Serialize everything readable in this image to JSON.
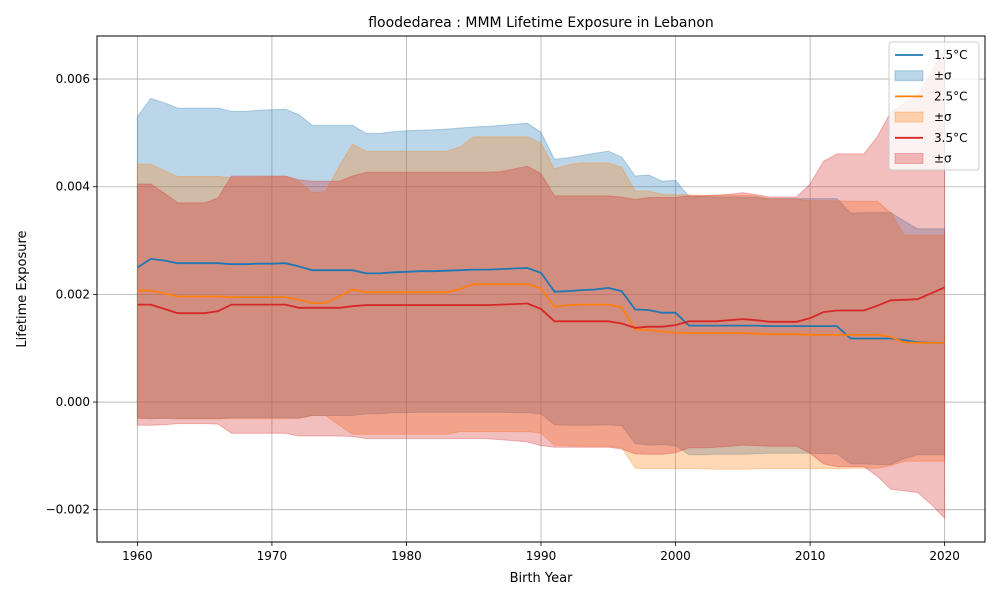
{
  "chart_data": {
    "type": "line",
    "title": "floodedarea : MMM Lifetime Exposure in Lebanon",
    "xlabel": "Birth Year",
    "ylabel": "Lifetime Exposure",
    "xlim": [
      1957,
      2023
    ],
    "ylim": [
      -0.0026,
      0.0068
    ],
    "xticks": [
      1960,
      1970,
      1980,
      1990,
      2000,
      2010,
      2020
    ],
    "yticks": [
      -0.002,
      0.0,
      0.002,
      0.004,
      0.006
    ],
    "xtick_labels": [
      "1960",
      "1970",
      "1980",
      "1990",
      "2000",
      "2010",
      "2020"
    ],
    "ytick_labels": [
      "−0.002",
      "0.000",
      "0.002",
      "0.004",
      "0.006"
    ],
    "grid": true,
    "legend_position": "top-right",
    "legend": [
      "1.5°C",
      "±σ",
      "2.5°C",
      "±σ",
      "3.5°C",
      "±σ"
    ],
    "x": [
      1960,
      1961,
      1962,
      1963,
      1964,
      1965,
      1966,
      1967,
      1968,
      1969,
      1970,
      1971,
      1972,
      1973,
      1974,
      1975,
      1976,
      1977,
      1978,
      1979,
      1980,
      1981,
      1982,
      1983,
      1984,
      1985,
      1986,
      1987,
      1988,
      1989,
      1990,
      1991,
      1992,
      1993,
      1994,
      1995,
      1996,
      1997,
      1998,
      1999,
      2000,
      2001,
      2002,
      2003,
      2004,
      2005,
      2006,
      2007,
      2008,
      2009,
      2010,
      2011,
      2012,
      2013,
      2014,
      2015,
      2016,
      2017,
      2018,
      2019,
      2020
    ],
    "series": [
      {
        "name": "1.5°C",
        "color": "#1f77b4",
        "values": [
          0.0025,
          0.00266,
          0.00263,
          0.00258,
          0.00258,
          0.00258,
          0.00258,
          0.00256,
          0.00256,
          0.00257,
          0.00257,
          0.00258,
          0.00252,
          0.00245,
          0.00245,
          0.00245,
          0.00245,
          0.00239,
          0.00239,
          0.00241,
          0.00242,
          0.00243,
          0.00243,
          0.00244,
          0.00245,
          0.00246,
          0.00246,
          0.00247,
          0.00248,
          0.00249,
          0.0024,
          0.00205,
          0.00206,
          0.00208,
          0.00209,
          0.00212,
          0.00206,
          0.00172,
          0.00171,
          0.00166,
          0.00166,
          0.00142,
          0.00142,
          0.00142,
          0.00142,
          0.00142,
          0.00142,
          0.00141,
          0.00141,
          0.00141,
          0.00141,
          0.00141,
          0.00141,
          0.00118,
          0.00118,
          0.00118,
          0.00118,
          0.00115,
          0.00111,
          0.0011,
          0.0011
        ],
        "upper": [
          0.0053,
          0.00564,
          0.00556,
          0.00546,
          0.00546,
          0.00546,
          0.00546,
          0.0054,
          0.0054,
          0.00542,
          0.00543,
          0.00544,
          0.00534,
          0.00514,
          0.00514,
          0.00514,
          0.00514,
          0.00499,
          0.00499,
          0.00502,
          0.00504,
          0.00505,
          0.00506,
          0.00507,
          0.00509,
          0.00511,
          0.00512,
          0.00514,
          0.00516,
          0.00518,
          0.00501,
          0.00451,
          0.00454,
          0.00458,
          0.00462,
          0.00466,
          0.00455,
          0.0042,
          0.00422,
          0.0041,
          0.00412,
          0.00382,
          0.00382,
          0.00381,
          0.00381,
          0.00381,
          0.0038,
          0.00378,
          0.00378,
          0.00378,
          0.00378,
          0.00378,
          0.00378,
          0.00351,
          0.00352,
          0.00352,
          0.00352,
          0.00336,
          0.00322,
          0.00322,
          0.00322
        ],
        "lower": [
          -0.0003,
          -0.00031,
          -0.0003,
          -0.00031,
          -0.00031,
          -0.00031,
          -0.00031,
          -0.00029,
          -0.00029,
          -0.00029,
          -0.00029,
          -0.00029,
          -0.0003,
          -0.00025,
          -0.00025,
          -0.00025,
          -0.00025,
          -0.00022,
          -0.00022,
          -0.0002,
          -0.0002,
          -0.00019,
          -0.00019,
          -0.00019,
          -0.00019,
          -0.00019,
          -0.00019,
          -0.00019,
          -0.0002,
          -0.0002,
          -0.00022,
          -0.00042,
          -0.00043,
          -0.00043,
          -0.00043,
          -0.00042,
          -0.00044,
          -0.00077,
          -0.0008,
          -0.00079,
          -0.00081,
          -0.00098,
          -0.00098,
          -0.00097,
          -0.00097,
          -0.00097,
          -0.00096,
          -0.00095,
          -0.00095,
          -0.00095,
          -0.00095,
          -0.00096,
          -0.00096,
          -0.00115,
          -0.00115,
          -0.00116,
          -0.00116,
          -0.00105,
          -0.00098,
          -0.00098,
          -0.00098
        ]
      },
      {
        "name": "2.5°C",
        "color": "#ff7f0e",
        "values": [
          0.00207,
          0.00207,
          0.00202,
          0.00196,
          0.00196,
          0.00196,
          0.00196,
          0.00195,
          0.00195,
          0.00195,
          0.00195,
          0.00195,
          0.0019,
          0.00184,
          0.00184,
          0.00196,
          0.00209,
          0.00204,
          0.00204,
          0.00204,
          0.00204,
          0.00204,
          0.00204,
          0.00204,
          0.0021,
          0.00219,
          0.00219,
          0.00219,
          0.00219,
          0.00219,
          0.00211,
          0.00177,
          0.0018,
          0.00181,
          0.00181,
          0.00181,
          0.00176,
          0.00135,
          0.00134,
          0.00131,
          0.00129,
          0.00128,
          0.00128,
          0.00128,
          0.00128,
          0.00128,
          0.00127,
          0.00126,
          0.00126,
          0.00126,
          0.00125,
          0.00125,
          0.00125,
          0.00125,
          0.00125,
          0.00125,
          0.00121,
          0.00111,
          0.0011,
          0.0011,
          0.0011
        ],
        "upper": [
          0.00442,
          0.00442,
          0.0043,
          0.00419,
          0.00419,
          0.00419,
          0.00419,
          0.00417,
          0.00417,
          0.00417,
          0.00418,
          0.00418,
          0.0041,
          0.00389,
          0.00391,
          0.00438,
          0.00479,
          0.00466,
          0.00466,
          0.00466,
          0.00466,
          0.00466,
          0.00466,
          0.00466,
          0.00474,
          0.00493,
          0.00493,
          0.00493,
          0.00493,
          0.00493,
          0.00481,
          0.00433,
          0.00441,
          0.00444,
          0.00444,
          0.00444,
          0.00436,
          0.00392,
          0.00392,
          0.00386,
          0.00385,
          0.00385,
          0.00384,
          0.00384,
          0.00384,
          0.00384,
          0.00383,
          0.00377,
          0.00377,
          0.00377,
          0.00374,
          0.00374,
          0.00374,
          0.00373,
          0.00373,
          0.00373,
          0.00352,
          0.0031,
          0.0031,
          0.0031,
          0.0031
        ],
        "lower": [
          -0.0003,
          -0.0003,
          -0.0003,
          -0.00031,
          -0.00031,
          -0.00031,
          -0.00031,
          -0.00031,
          -0.00031,
          -0.00031,
          -0.00031,
          -0.00031,
          -0.0003,
          -0.00025,
          -0.00025,
          -0.00043,
          -0.0006,
          -0.0006,
          -0.0006,
          -0.0006,
          -0.0006,
          -0.0006,
          -0.0006,
          -0.0006,
          -0.00055,
          -0.00055,
          -0.00055,
          -0.00055,
          -0.00055,
          -0.00055,
          -0.00058,
          -0.0008,
          -0.00081,
          -0.00082,
          -0.00082,
          -0.00082,
          -0.00085,
          -0.00123,
          -0.00124,
          -0.00124,
          -0.00124,
          -0.00124,
          -0.00124,
          -0.00125,
          -0.00125,
          -0.00125,
          -0.00124,
          -0.00124,
          -0.00124,
          -0.00124,
          -0.00124,
          -0.00124,
          -0.00124,
          -0.00123,
          -0.00123,
          -0.00123,
          -0.00118,
          -0.0011,
          -0.0011,
          -0.0011,
          -0.0011
        ]
      },
      {
        "name": "3.5°C",
        "color": "#d62728",
        "values": [
          0.00181,
          0.00181,
          0.00173,
          0.00165,
          0.00165,
          0.00165,
          0.00169,
          0.00181,
          0.00181,
          0.00181,
          0.00181,
          0.00181,
          0.00175,
          0.00175,
          0.00175,
          0.00175,
          0.00178,
          0.0018,
          0.0018,
          0.0018,
          0.0018,
          0.0018,
          0.0018,
          0.0018,
          0.0018,
          0.0018,
          0.0018,
          0.00181,
          0.00182,
          0.00183,
          0.00173,
          0.0015,
          0.0015,
          0.0015,
          0.0015,
          0.0015,
          0.00146,
          0.00138,
          0.0014,
          0.0014,
          0.00143,
          0.0015,
          0.0015,
          0.0015,
          0.00152,
          0.00154,
          0.00152,
          0.00149,
          0.00149,
          0.00149,
          0.00156,
          0.00167,
          0.0017,
          0.0017,
          0.0017,
          0.00179,
          0.00189,
          0.0019,
          0.00191,
          0.00202,
          0.00213
        ],
        "upper": [
          0.00405,
          0.00405,
          0.00388,
          0.0037,
          0.0037,
          0.0037,
          0.00379,
          0.0042,
          0.0042,
          0.0042,
          0.0042,
          0.0042,
          0.00413,
          0.0041,
          0.0041,
          0.0041,
          0.0042,
          0.00427,
          0.00427,
          0.00427,
          0.00427,
          0.00427,
          0.00427,
          0.00427,
          0.00427,
          0.00427,
          0.00427,
          0.00428,
          0.00433,
          0.00438,
          0.00424,
          0.00383,
          0.00383,
          0.00383,
          0.00383,
          0.00383,
          0.00381,
          0.00376,
          0.0038,
          0.0038,
          0.0038,
          0.00383,
          0.00383,
          0.00384,
          0.00386,
          0.00389,
          0.00385,
          0.00381,
          0.00381,
          0.00381,
          0.00405,
          0.00447,
          0.00461,
          0.00461,
          0.00461,
          0.00493,
          0.00539,
          0.00555,
          0.0057,
          0.00612,
          0.00655
        ],
        "lower": [
          -0.00043,
          -0.00043,
          -0.00042,
          -0.0004,
          -0.0004,
          -0.0004,
          -0.00041,
          -0.00058,
          -0.00058,
          -0.00058,
          -0.00058,
          -0.00058,
          -0.00063,
          -0.00063,
          -0.00063,
          -0.00063,
          -0.00064,
          -0.00068,
          -0.00068,
          -0.00068,
          -0.00068,
          -0.00068,
          -0.00068,
          -0.00068,
          -0.00068,
          -0.00068,
          -0.00068,
          -0.0007,
          -0.00072,
          -0.00074,
          -0.00081,
          -0.00084,
          -0.00084,
          -0.00084,
          -0.00084,
          -0.00084,
          -0.00087,
          -0.00096,
          -0.00097,
          -0.00097,
          -0.00094,
          -0.00085,
          -0.00085,
          -0.00084,
          -0.00082,
          -0.0008,
          -0.00081,
          -0.00082,
          -0.00082,
          -0.00082,
          -0.00095,
          -0.00115,
          -0.0012,
          -0.0012,
          -0.0012,
          -0.00138,
          -0.00162,
          -0.00165,
          -0.00168,
          -0.0019,
          -0.00216
        ]
      }
    ]
  }
}
